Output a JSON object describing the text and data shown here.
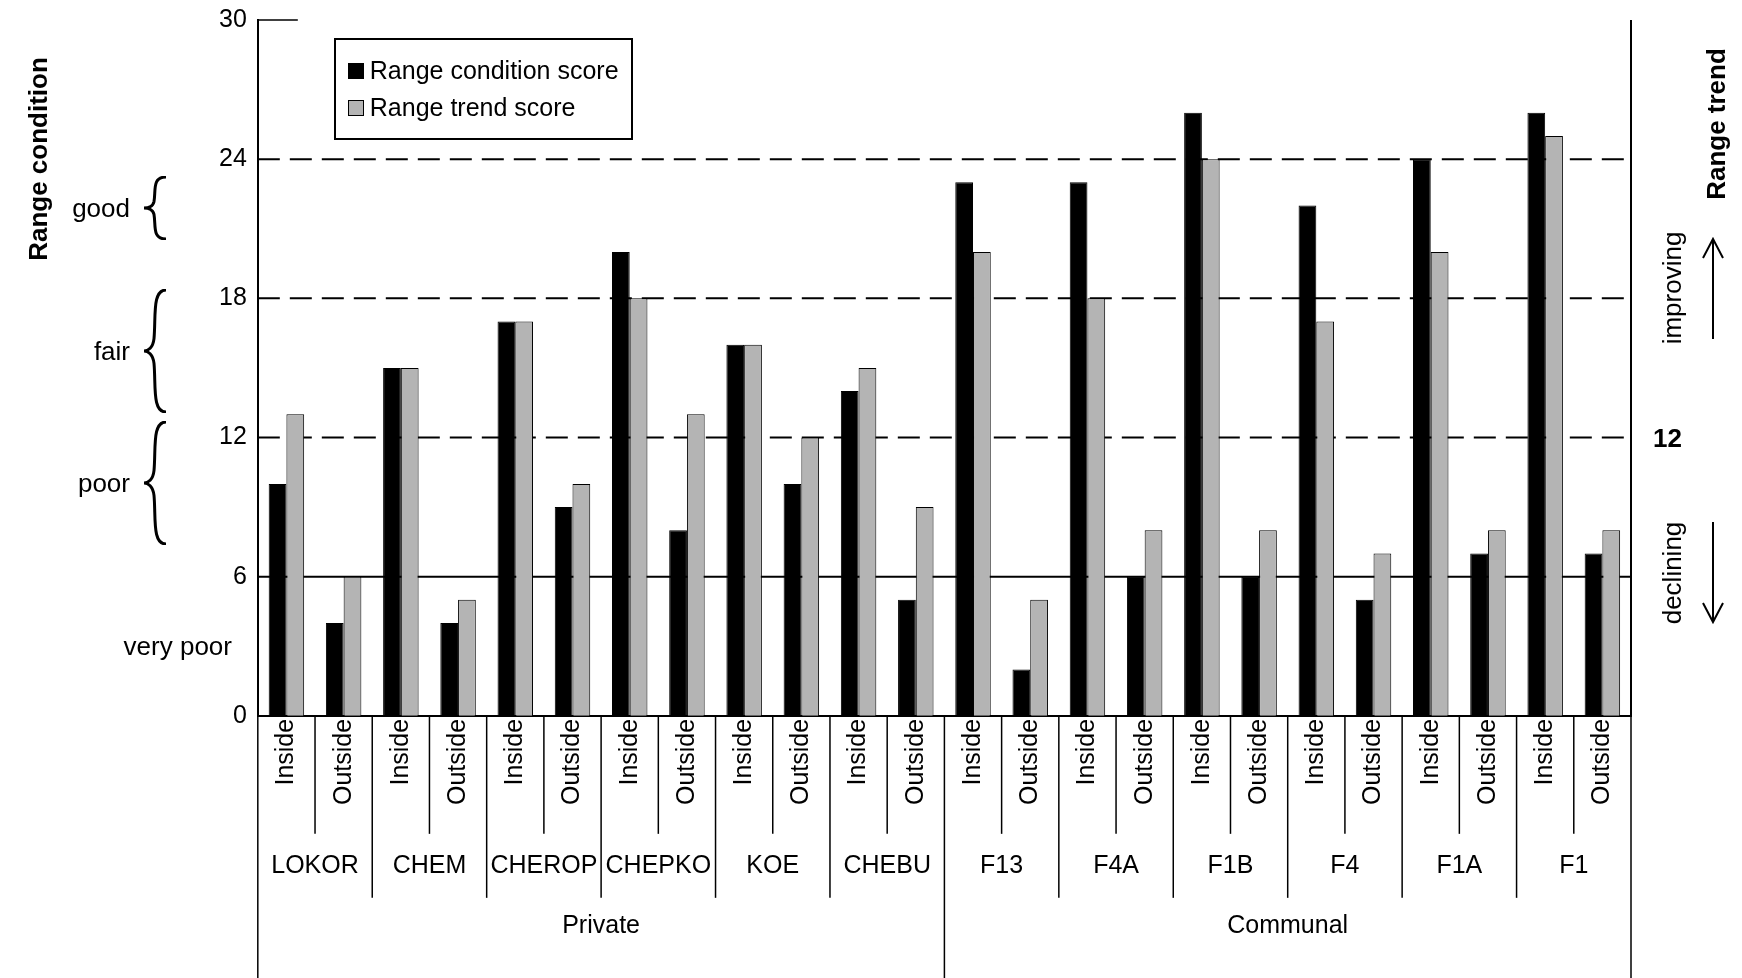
{
  "chart_data": {
    "type": "bar",
    "categories": [
      "Inside",
      "Outside",
      "Inside",
      "Outside",
      "Inside",
      "Outside",
      "Inside",
      "Outside",
      "Inside",
      "Outside",
      "Inside",
      "Outside",
      "Inside",
      "Outside",
      "Inside",
      "Outside",
      "Inside",
      "Outside",
      "Inside",
      "Outside",
      "Inside",
      "Outside",
      "Inside",
      "Outside"
    ],
    "series": [
      {
        "name": "Range condition score",
        "color": "#000000",
        "values": [
          10,
          4,
          15,
          4,
          17,
          9,
          20,
          8,
          16,
          10,
          14,
          5,
          23,
          2,
          23,
          6,
          26,
          6,
          22,
          5,
          24,
          7,
          26,
          7
        ]
      },
      {
        "name": "Range trend score",
        "color": "#b4b4b4",
        "values": [
          13,
          6,
          15,
          5,
          17,
          10,
          18,
          13,
          16,
          12,
          15,
          9,
          20,
          5,
          18,
          8,
          24,
          8,
          17,
          7,
          20,
          8,
          25,
          8
        ]
      }
    ],
    "y2label": "Range trend",
    "ylim": [
      0,
      30
    ],
    "yticks": [
      0,
      6,
      12,
      18,
      24,
      30
    ],
    "ref_lines": [
      {
        "axis": "y",
        "value": 6,
        "line_style": "solid"
      },
      {
        "axis": "y",
        "value": 12,
        "line_style": "dashed"
      },
      {
        "axis": "y",
        "value": 18,
        "line_style": "dashed"
      },
      {
        "axis": "y",
        "value": 24,
        "line_style": "dashed"
      }
    ],
    "annotations": [
      "LOKOR",
      "CHEM",
      "CHEROP",
      "CHEPKO",
      "KOE",
      "CHEBU",
      "F13",
      "F4A",
      "F1B",
      "F4",
      "F1A",
      "F1",
      "Private",
      "Communal",
      "improving",
      "declining",
      "12",
      "good",
      "fair",
      "poor",
      "very poor",
      "Range condition"
    ],
    "legend": "top left",
    "grid": false
  }
}
